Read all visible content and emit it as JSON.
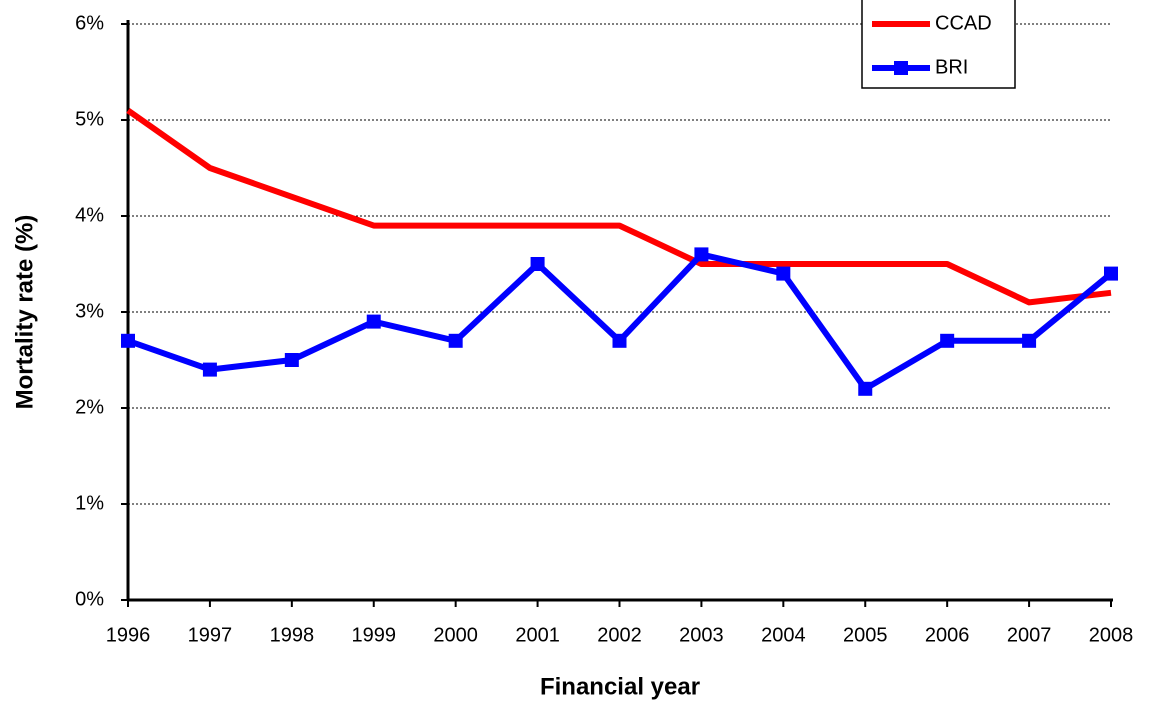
{
  "chart_data": {
    "type": "line",
    "x_label": "Financial year",
    "y_label": "Mortality rate (%)",
    "x": [
      1996,
      1997,
      1998,
      1999,
      2000,
      2001,
      2002,
      2003,
      2004,
      2005,
      2006,
      2007,
      2008
    ],
    "xlim": [
      1996,
      2008
    ],
    "xticks": [
      1996,
      1997,
      1998,
      1999,
      2000,
      2001,
      2002,
      2003,
      2004,
      2005,
      2006,
      2007,
      2008
    ],
    "ylim": [
      0,
      6
    ],
    "yticks": [
      {
        "value": 0,
        "label": "0%"
      },
      {
        "value": 1,
        "label": "1%"
      },
      {
        "value": 2,
        "label": "2%"
      },
      {
        "value": 3,
        "label": "3%"
      },
      {
        "value": 4,
        "label": "4%"
      },
      {
        "value": 5,
        "label": "5%"
      },
      {
        "value": 6,
        "label": "6%"
      }
    ],
    "grid": true,
    "legend": "upper right",
    "series": [
      {
        "name": "CCAD",
        "color": "#ff0000",
        "marker": "none",
        "values": [
          5.1,
          4.5,
          4.2,
          3.9,
          3.9,
          3.9,
          3.9,
          3.5,
          3.5,
          3.5,
          3.5,
          3.1,
          3.2
        ]
      },
      {
        "name": "BRI",
        "color": "#0000ff",
        "marker": "square",
        "values": [
          2.7,
          2.4,
          2.5,
          2.9,
          2.7,
          3.5,
          2.7,
          3.6,
          3.4,
          2.2,
          2.7,
          2.7,
          3.4
        ]
      }
    ]
  }
}
